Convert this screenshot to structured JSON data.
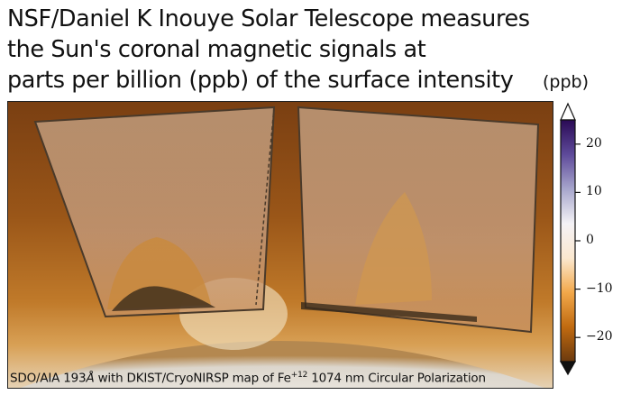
{
  "title_lines": [
    "NSF/Daniel K Inouye Solar Telescope measures",
    "the Sun's coronal magnetic signals at",
    "parts per billion (ppb) of the surface intensity"
  ],
  "colorbar": {
    "unit": "(ppb)",
    "range": [
      -25,
      25
    ],
    "ticks": [
      {
        "value": 20,
        "label": "20"
      },
      {
        "value": 10,
        "label": "10"
      },
      {
        "value": 0,
        "label": "0"
      },
      {
        "value": -10,
        "label": "−10"
      },
      {
        "value": -20,
        "label": "−20"
      }
    ],
    "colors": [
      "#6b3a0e",
      "#c06a10",
      "#f2a84a",
      "#fbe8cf",
      "#f4f2f6",
      "#a7a6cc",
      "#5e4a9a",
      "#2a0a55"
    ],
    "extend": "both",
    "extend_colors": {
      "over": "#ffffff",
      "under": "#111111"
    }
  },
  "caption": {
    "prefix": "SDO/AIA 193",
    "angstrom": "Å",
    "middle": " with  DKIST/CryoNIRSP map of Fe",
    "superscript": "+12",
    "suffix": " 1074 nm Circular Polarization"
  }
}
